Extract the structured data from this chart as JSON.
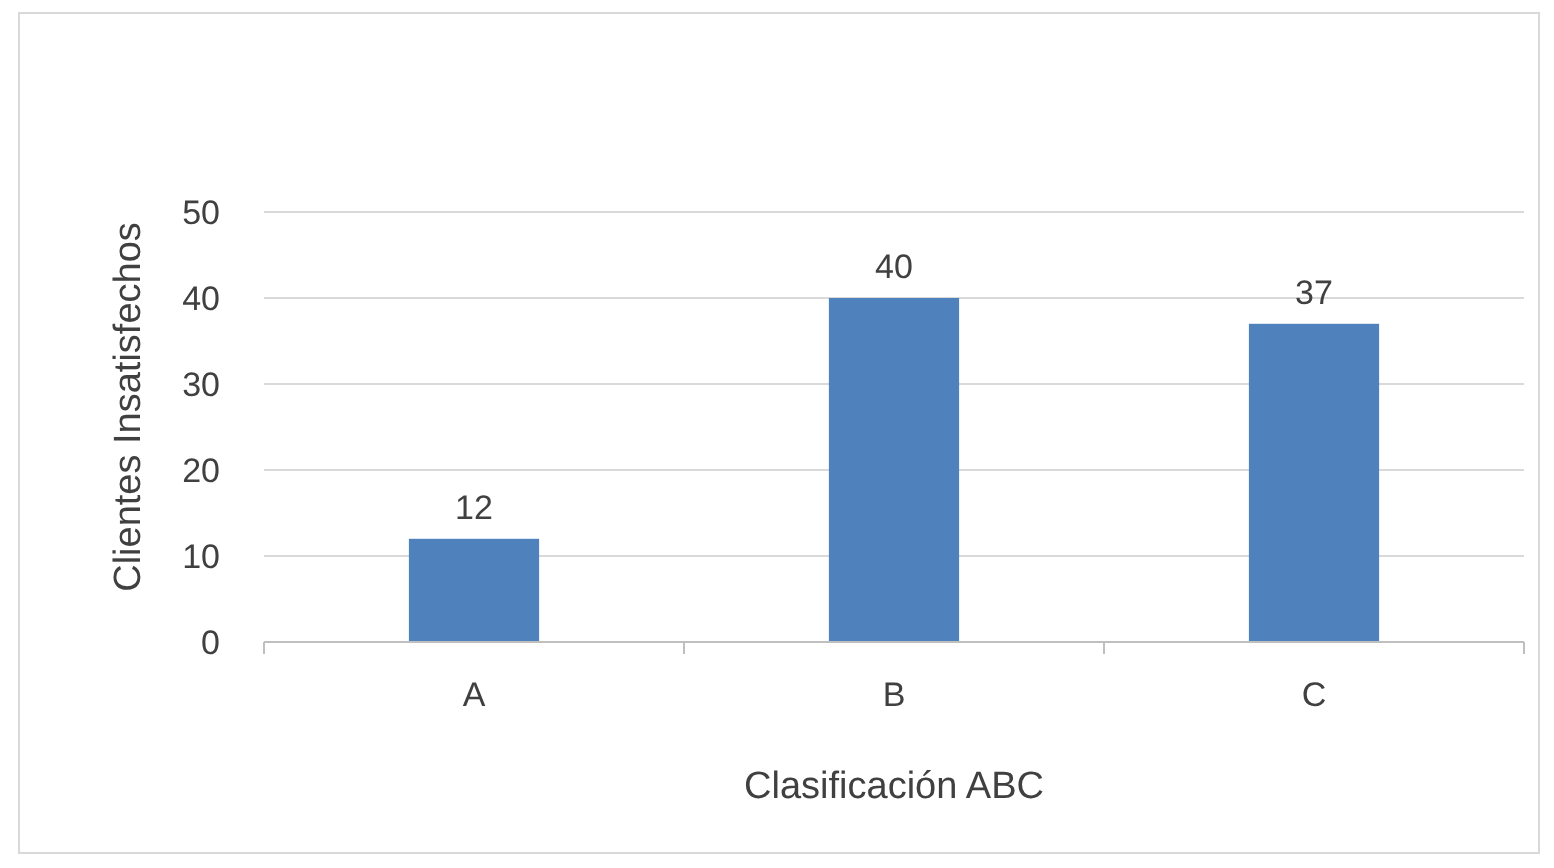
{
  "chart_data": {
    "type": "bar",
    "xlabel": "Clasificación ABC",
    "ylabel": "Clientes Insatisfechos",
    "categories": [
      "A",
      "B",
      "C"
    ],
    "values": [
      12,
      40,
      37
    ],
    "color": "#4f81bd",
    "ylim": [
      0,
      50
    ],
    "yticks": [
      0,
      10,
      20,
      30,
      40,
      50
    ],
    "grid": "y",
    "data_labels": true
  }
}
